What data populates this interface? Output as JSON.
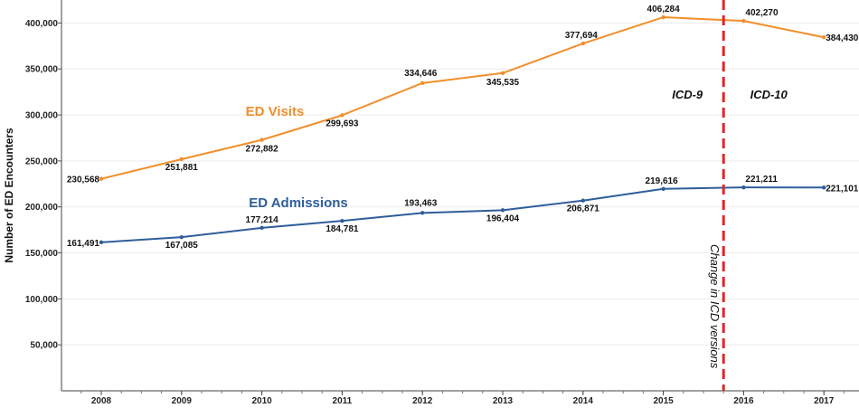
{
  "chart_data": {
    "type": "line",
    "title": "",
    "xlabel": "",
    "ylabel": "Number of ED Encounters",
    "ylim": [
      0,
      425000
    ],
    "yticks": [
      50000,
      100000,
      150000,
      200000,
      250000,
      300000,
      350000,
      400000
    ],
    "ytick_labels": [
      "50,000",
      "100,000",
      "150,000",
      "200,000",
      "250,000",
      "300,000",
      "350,000",
      "400,000"
    ],
    "x": [
      "2008",
      "2009",
      "2010",
      "2011",
      "2012",
      "2013",
      "2014",
      "2015",
      "2016",
      "2017"
    ],
    "series": [
      {
        "name": "ED Visits",
        "color": "#f28e2b",
        "values": [
          230568,
          251881,
          272882,
          299693,
          334646,
          345535,
          377694,
          406284,
          402270,
          384430
        ],
        "labels": [
          "230,568",
          "251,881",
          "272,882",
          "299,693",
          "334,646",
          "345,535",
          "377,694",
          "406,284",
          "402,270",
          "384,430"
        ]
      },
      {
        "name": "ED Admissions",
        "color": "#2e5e9a",
        "values": [
          161491,
          167085,
          177214,
          184781,
          193463,
          196404,
          206871,
          219616,
          221211,
          221101
        ],
        "labels": [
          "161,491",
          "167,085",
          "177,214",
          "184,781",
          "193,463",
          "196,404",
          "206,871",
          "219,616",
          "221,211",
          "221,101"
        ]
      }
    ],
    "annotations": {
      "divider_between": [
        "2015",
        "2016"
      ],
      "divider_color": "#e0262b",
      "divider_text": "Change in ICD versions",
      "left_text": "ICD-9",
      "right_text": "ICD-10"
    }
  }
}
